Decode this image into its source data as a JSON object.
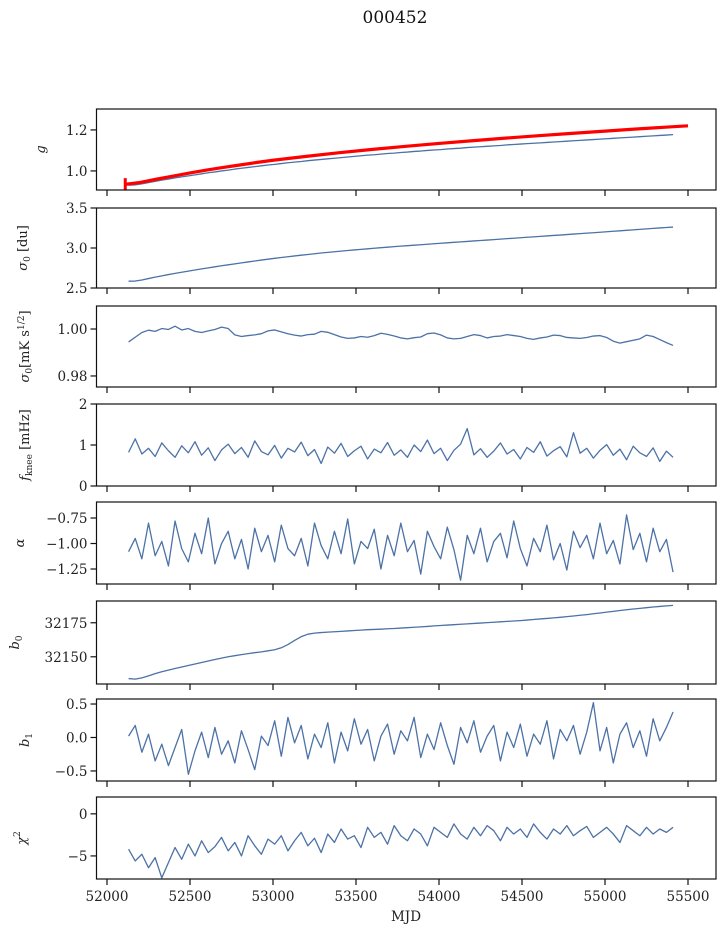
{
  "figure_title": "000452",
  "chart_data": {
    "type": "line",
    "title": "000452",
    "xlabel": "MJD",
    "xlim": [
      51950,
      55680
    ],
    "xticks": [
      52000,
      52500,
      53000,
      53500,
      54000,
      54500,
      55000,
      55500
    ],
    "xtick_labels": [
      "52000",
      "52500",
      "53000",
      "53500",
      "54000",
      "54500",
      "55000",
      "55500"
    ],
    "grid": false,
    "colors": {
      "data": "#4c72a6",
      "fit": "#ff0000"
    },
    "x": [
      52130,
      52170,
      52210,
      52250,
      52290,
      52330,
      52370,
      52410,
      52450,
      52490,
      52530,
      52570,
      52610,
      52650,
      52690,
      52730,
      52770,
      52810,
      52850,
      52890,
      52930,
      52970,
      53010,
      53050,
      53090,
      53130,
      53170,
      53210,
      53250,
      53290,
      53330,
      53370,
      53410,
      53450,
      53490,
      53530,
      53570,
      53610,
      53650,
      53690,
      53730,
      53770,
      53810,
      53850,
      53890,
      53930,
      53970,
      54010,
      54050,
      54090,
      54130,
      54170,
      54210,
      54250,
      54290,
      54330,
      54370,
      54410,
      54450,
      54490,
      54530,
      54570,
      54610,
      54650,
      54690,
      54730,
      54770,
      54810,
      54850,
      54890,
      54930,
      54970,
      55010,
      55050,
      55090,
      55130,
      55170,
      55210,
      55250,
      55290,
      55330,
      55370,
      55410
    ],
    "panels": [
      {
        "ylabel": "g",
        "ylim": [
          0.907,
          1.302
        ],
        "yticks": [
          1.0,
          1.2
        ],
        "ytick_labels": [
          "1.0",
          "1.2"
        ],
        "series": [
          {
            "name": "g",
            "values": [
              0.93,
              0.932,
              0.937,
              0.943,
              0.949,
              0.955,
              0.96,
              0.966,
              0.971,
              0.976,
              0.981,
              0.986,
              0.991,
              0.995,
              1.0,
              1.004,
              1.009,
              1.013,
              1.017,
              1.021,
              1.025,
              1.029,
              1.032,
              1.036,
              1.04,
              1.043,
              1.046,
              1.05,
              1.053,
              1.056,
              1.059,
              1.062,
              1.065,
              1.068,
              1.071,
              1.074,
              1.077,
              1.079,
              1.082,
              1.085,
              1.087,
              1.09,
              1.092,
              1.095,
              1.097,
              1.1,
              1.102,
              1.104,
              1.107,
              1.109,
              1.111,
              1.114,
              1.116,
              1.118,
              1.12,
              1.122,
              1.124,
              1.127,
              1.129,
              1.131,
              1.133,
              1.135,
              1.137,
              1.139,
              1.141,
              1.143,
              1.145,
              1.147,
              1.149,
              1.151,
              1.153,
              1.155,
              1.157,
              1.159,
              1.161,
              1.163,
              1.165,
              1.167,
              1.169,
              1.171,
              1.173,
              1.175,
              1.177
            ]
          },
          {
            "name": "g fit",
            "x": [
              52115,
              52200,
              52300,
              52400,
              52500,
              52600,
              52700,
              52800,
              52900,
              53000,
              53200,
              53400,
              53600,
              53800,
              54000,
              54200,
              54400,
              54600,
              54800,
              55000,
              55200,
              55400,
              55500
            ],
            "values": [
              0.935,
              0.944,
              0.96,
              0.975,
              0.99,
              1.004,
              1.017,
              1.029,
              1.041,
              1.052,
              1.071,
              1.089,
              1.105,
              1.12,
              1.134,
              1.147,
              1.16,
              1.172,
              1.183,
              1.194,
              1.205,
              1.215,
              1.22
            ]
          },
          {
            "name": "g fit error bar",
            "x": 52110,
            "ylow": 0.907,
            "yhigh": 0.965
          }
        ]
      },
      {
        "ylabel": "σ0 [du]",
        "ylim": [
          2.5,
          3.5
        ],
        "yticks": [
          2.5,
          3.0,
          3.5
        ],
        "ytick_labels": [
          "2.5",
          "3.0",
          "3.5"
        ],
        "series": [
          {
            "name": "sigma0_du",
            "values": [
              2.585,
              2.587,
              2.6,
              2.618,
              2.636,
              2.652,
              2.668,
              2.683,
              2.697,
              2.711,
              2.725,
              2.739,
              2.752,
              2.765,
              2.778,
              2.79,
              2.802,
              2.814,
              2.826,
              2.838,
              2.849,
              2.86,
              2.871,
              2.881,
              2.891,
              2.901,
              2.91,
              2.919,
              2.928,
              2.937,
              2.945,
              2.953,
              2.961,
              2.969,
              2.976,
              2.983,
              2.99,
              2.997,
              3.004,
              3.01,
              3.017,
              3.023,
              3.029,
              3.035,
              3.041,
              3.047,
              3.053,
              3.059,
              3.065,
              3.071,
              3.077,
              3.082,
              3.088,
              3.094,
              3.099,
              3.105,
              3.111,
              3.117,
              3.122,
              3.128,
              3.134,
              3.139,
              3.145,
              3.151,
              3.157,
              3.162,
              3.168,
              3.174,
              3.18,
              3.186,
              3.191,
              3.197,
              3.203,
              3.209,
              3.215,
              3.221,
              3.227,
              3.233,
              3.239,
              3.245,
              3.251,
              3.256,
              3.262
            ]
          }
        ]
      },
      {
        "ylabel": "σ0[mK s^1/2]",
        "ylim": [
          0.9753,
          1.0098
        ],
        "yticks": [
          0.98,
          1.0
        ],
        "ytick_labels": [
          "0.98",
          "1.00"
        ],
        "series": [
          {
            "name": "sigma0_mK",
            "values": [
              0.9945,
              0.9965,
              0.9985,
              0.9995,
              0.999,
              1.0002,
              0.9998,
              1.0012,
              0.9996,
              1.0002,
              0.999,
              0.9985,
              0.9992,
              0.9998,
              1.0008,
              1.0002,
              0.9975,
              0.9968,
              0.9972,
              0.9975,
              0.998,
              0.9992,
              0.9996,
              0.9988,
              0.998,
              0.9974,
              0.997,
              0.9976,
              0.9978,
              0.999,
              0.9986,
              0.9976,
              0.9966,
              0.996,
              0.9962,
              0.9968,
              0.9965,
              0.9972,
              0.9982,
              0.9977,
              0.997,
              0.9962,
              0.9958,
              0.9963,
              0.9966,
              0.998,
              0.9983,
              0.9975,
              0.9962,
              0.9958,
              0.996,
              0.9968,
              0.9976,
              0.9972,
              0.9962,
              0.9968,
              0.997,
              0.9976,
              0.9972,
              0.9968,
              0.996,
              0.9956,
              0.9962,
              0.9966,
              0.9974,
              0.9972,
              0.9964,
              0.9962,
              0.996,
              0.9964,
              0.997,
              0.9972,
              0.9964,
              0.9948,
              0.994,
              0.9946,
              0.9952,
              0.9958,
              0.9974,
              0.9968,
              0.9955,
              0.9942,
              0.993
            ]
          }
        ]
      },
      {
        "ylabel": "fknee [mHz]",
        "ylim": [
          0,
          2
        ],
        "yticks": [
          0,
          1,
          2
        ],
        "ytick_labels": [
          "0",
          "1",
          "2"
        ],
        "series": [
          {
            "name": "fknee",
            "values": [
              0.82,
              1.15,
              0.78,
              0.92,
              0.72,
              1.05,
              0.86,
              0.7,
              0.98,
              0.81,
              1.08,
              0.75,
              0.93,
              0.62,
              0.88,
              1.02,
              0.79,
              0.94,
              0.7,
              1.1,
              0.84,
              0.76,
              0.99,
              0.68,
              0.92,
              0.83,
              1.07,
              0.74,
              0.89,
              0.55,
              0.95,
              0.8,
              1.04,
              0.72,
              0.86,
              0.97,
              0.66,
              0.9,
              0.81,
              1.06,
              0.75,
              0.88,
              0.7,
              1.0,
              0.84,
              1.12,
              0.79,
              0.92,
              0.62,
              0.87,
              1.02,
              1.4,
              0.76,
              0.91,
              0.7,
              0.85,
              1.05,
              0.78,
              0.89,
              0.66,
              0.94,
              0.82,
              1.08,
              0.73,
              0.86,
              0.96,
              0.71,
              1.3,
              0.8,
              0.92,
              0.68,
              0.87,
              1.01,
              0.75,
              0.9,
              0.64,
              0.97,
              0.81,
              0.72,
              0.93,
              0.6,
              0.85,
              0.7
            ]
          }
        ]
      },
      {
        "ylabel": "α",
        "ylim": [
          -1.397,
          -0.593
        ],
        "yticks": [
          -1.25,
          -1.0,
          -0.75
        ],
        "ytick_labels": [
          "−1.25",
          "−1.00",
          "−0.75"
        ],
        "series": [
          {
            "name": "alpha",
            "values": [
              -1.08,
              -0.95,
              -1.15,
              -0.8,
              -1.12,
              -0.98,
              -1.22,
              -0.78,
              -1.05,
              -1.18,
              -0.9,
              -1.1,
              -0.75,
              -1.2,
              -1.0,
              -0.88,
              -1.15,
              -0.96,
              -1.25,
              -0.85,
              -1.08,
              -0.92,
              -1.18,
              -0.82,
              -1.05,
              -1.12,
              -0.95,
              -1.22,
              -0.8,
              -1.02,
              -1.15,
              -0.88,
              -1.1,
              -0.76,
              -1.2,
              -0.98,
              -1.05,
              -0.86,
              -1.25,
              -0.92,
              -1.12,
              -0.8,
              -1.08,
              -0.97,
              -1.3,
              -0.88,
              -1.03,
              -1.15,
              -0.84,
              -1.06,
              -1.36,
              -0.92,
              -1.1,
              -0.85,
              -1.18,
              -0.98,
              -0.9,
              -1.14,
              -0.78,
              -1.05,
              -1.22,
              -0.95,
              -1.08,
              -0.82,
              -1.16,
              -1.0,
              -1.26,
              -0.88,
              -1.04,
              -0.92,
              -1.15,
              -0.8,
              -1.1,
              -0.97,
              -1.2,
              -0.72,
              -1.06,
              -0.9,
              -1.18,
              -0.85,
              -1.08,
              -0.96,
              -1.28
            ]
          }
        ]
      },
      {
        "ylabel": "b0",
        "ylim": [
          32130,
          32191
        ],
        "yticks": [
          32150,
          32175
        ],
        "ytick_labels": [
          "32150",
          "32175"
        ],
        "series": [
          {
            "name": "b0",
            "values": [
              32134.0,
              32133.6,
              32134.5,
              32136.0,
              32137.6,
              32139.0,
              32140.2,
              32141.4,
              32142.5,
              32143.6,
              32144.7,
              32145.8,
              32146.9,
              32148.0,
              32149.0,
              32150.0,
              32150.8,
              32151.6,
              32152.3,
              32153.0,
              32153.6,
              32154.4,
              32155.2,
              32156.6,
              32159.0,
              32162.0,
              32164.8,
              32166.6,
              32167.4,
              32167.8,
              32168.1,
              32168.4,
              32168.7,
              32169.0,
              32169.3,
              32169.6,
              32169.9,
              32170.1,
              32170.3,
              32170.6,
              32170.8,
              32171.1,
              32171.4,
              32171.7,
              32172.0,
              32172.3,
              32172.7,
              32173.0,
              32173.3,
              32173.6,
              32173.9,
              32174.2,
              32174.5,
              32174.8,
              32175.1,
              32175.4,
              32175.7,
              32176.0,
              32176.3,
              32176.6,
              32177.0,
              32177.4,
              32177.8,
              32178.2,
              32178.6,
              32179.0,
              32179.5,
              32180.0,
              32180.5,
              32181.0,
              32181.6,
              32182.2,
              32182.8,
              32183.4,
              32184.0,
              32184.6,
              32185.1,
              32185.6,
              32186.1,
              32186.6,
              32187.0,
              32187.4,
              32187.8
            ]
          }
        ]
      },
      {
        "ylabel": "b1",
        "ylim": [
          -0.65,
          0.575
        ],
        "yticks": [
          -0.5,
          0.0,
          0.5
        ],
        "ytick_labels": [
          "−0.5",
          "0.0",
          "0.5"
        ],
        "series": [
          {
            "name": "b1",
            "values": [
              0.02,
              0.18,
              -0.22,
              0.05,
              -0.35,
              -0.1,
              -0.42,
              -0.15,
              0.12,
              -0.55,
              -0.2,
              0.08,
              -0.3,
              0.15,
              -0.25,
              -0.05,
              -0.38,
              0.1,
              -0.18,
              -0.48,
              0.02,
              -0.12,
              0.25,
              -0.28,
              0.3,
              -0.08,
              0.18,
              -0.32,
              0.05,
              -0.15,
              0.22,
              -0.38,
              0.08,
              -0.2,
              0.28,
              -0.1,
              0.12,
              -0.35,
              0.02,
              0.2,
              -0.25,
              0.1,
              -0.05,
              0.3,
              -0.3,
              0.05,
              -0.18,
              0.22,
              -0.12,
              -0.4,
              0.15,
              -0.08,
              0.25,
              -0.22,
              0.02,
              0.18,
              -0.35,
              0.08,
              -0.15,
              0.2,
              -0.28,
              0.05,
              -0.1,
              0.25,
              -0.32,
              0.12,
              -0.05,
              0.18,
              -0.25,
              0.08,
              0.52,
              -0.2,
              0.15,
              -0.38,
              0.05,
              0.22,
              -0.15,
              0.1,
              -0.28,
              0.28,
              -0.05,
              0.15,
              0.38
            ]
          }
        ]
      },
      {
        "ylabel": "χ^2",
        "ylim": [
          -7.74,
          2.0
        ],
        "yticks": [
          -5,
          0
        ],
        "ytick_labels": [
          "−5",
          "0"
        ],
        "series": [
          {
            "name": "chi2",
            "values": [
              -4.2,
              -5.6,
              -4.8,
              -6.4,
              -5.2,
              -7.6,
              -5.8,
              -4.0,
              -5.4,
              -3.6,
              -5.0,
              -3.2,
              -4.6,
              -3.9,
              -2.8,
              -4.4,
              -3.4,
              -5.0,
              -2.6,
              -3.8,
              -4.8,
              -3.0,
              -3.6,
              -2.6,
              -4.4,
              -3.2,
              -2.2,
              -3.8,
              -2.9,
              -4.6,
              -2.4,
              -3.4,
              -1.8,
              -3.0,
              -2.6,
              -4.0,
              -1.6,
              -2.8,
              -2.2,
              -3.6,
              -1.4,
              -2.6,
              -3.2,
              -1.8,
              -2.4,
              -3.8,
              -1.6,
              -2.2,
              -2.8,
              -1.2,
              -2.4,
              -3.0,
              -1.6,
              -2.6,
              -1.4,
              -2.0,
              -3.2,
              -1.6,
              -2.4,
              -1.8,
              -2.8,
              -1.2,
              -2.2,
              -3.0,
              -1.8,
              -2.4,
              -1.4,
              -2.6,
              -2.0,
              -1.5,
              -2.8,
              -2.2,
              -1.6,
              -2.4,
              -3.4,
              -1.4,
              -2.0,
              -2.6,
              -1.6,
              -2.4,
              -1.8,
              -2.2,
              -1.6
            ]
          }
        ]
      }
    ]
  }
}
